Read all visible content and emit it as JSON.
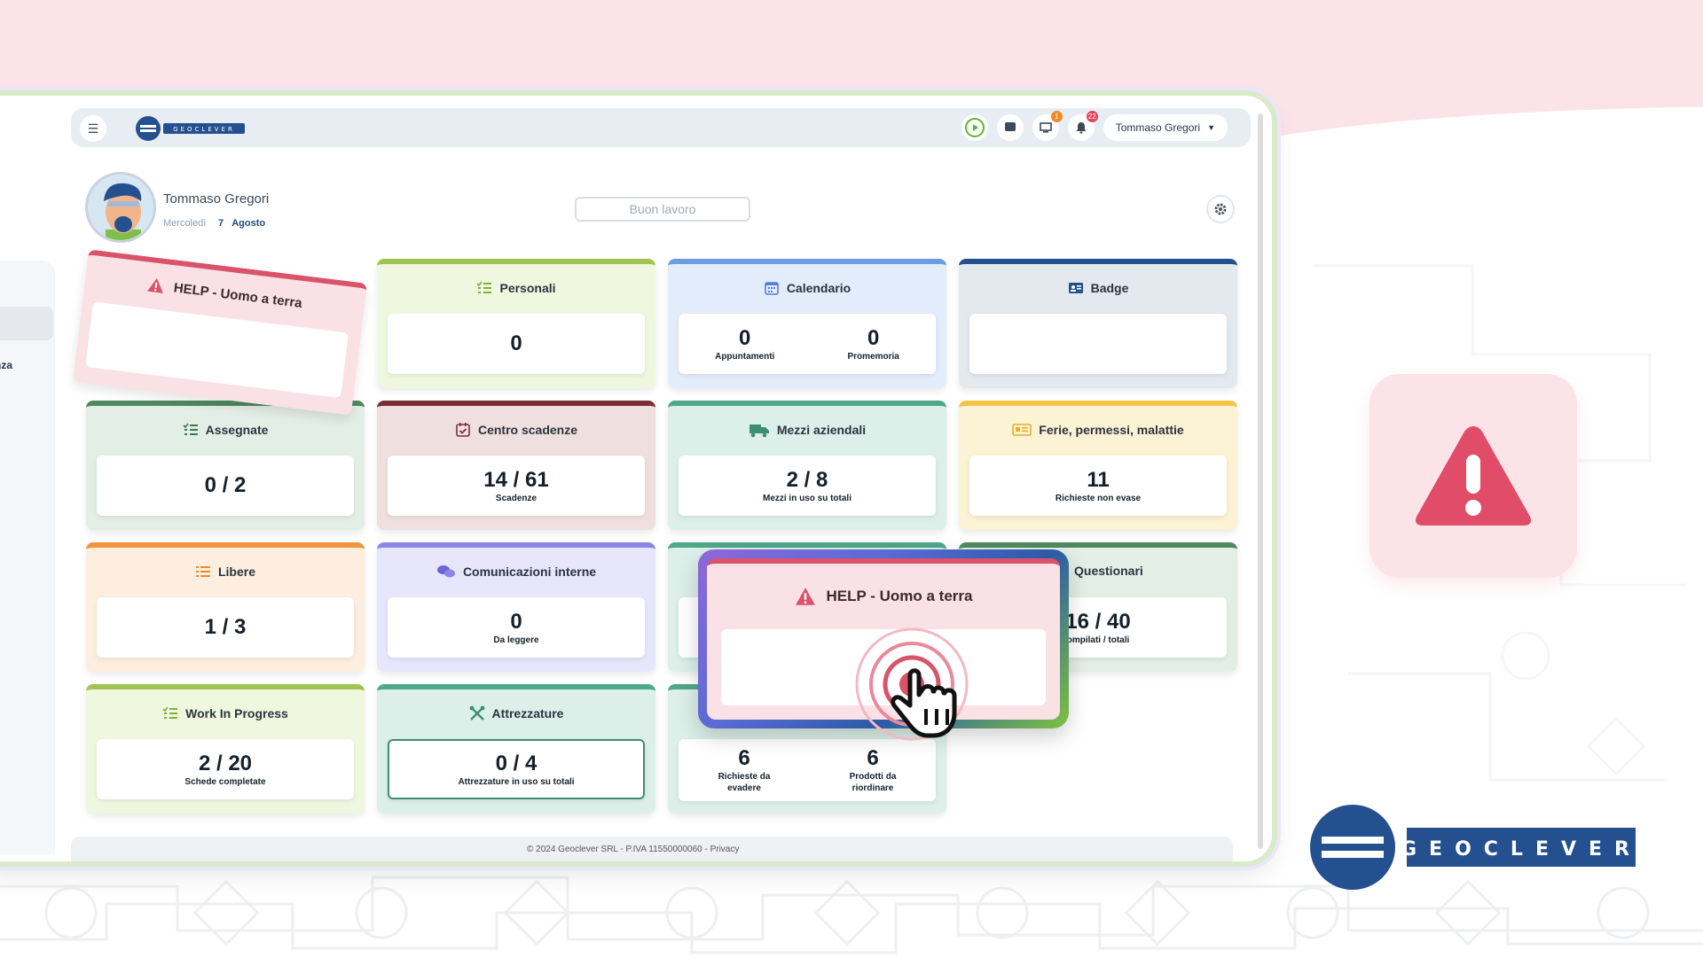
{
  "topbar": {
    "logo_text": "GEOCLEVER",
    "user_button": "Tommaso Gregori",
    "notifications": [
      {
        "icon": "play-icon",
        "count": ""
      },
      {
        "icon": "message-icon",
        "count": ""
      },
      {
        "icon": "monitor-icon",
        "count": "1"
      },
      {
        "icon": "bell-icon",
        "count": "22"
      }
    ]
  },
  "profile": {
    "name": "Tommaso Gregori",
    "day": "Mercoledì",
    "date_num": "7",
    "month": "Agosto",
    "motto": "Buon lavoro"
  },
  "sidebar": {
    "partial_label": "genza"
  },
  "footer": {
    "text": "© 2024 Geoclever SRL - P.IVA 11550000060 - Privacy"
  },
  "help_card": {
    "title": "HELP - Uomo a terra"
  },
  "widgets": {
    "personali": {
      "title": "Personali",
      "value": "0"
    },
    "calendario": {
      "title": "Calendario",
      "left_value": "0",
      "left_label": "Appuntamenti",
      "right_value": "0",
      "right_label": "Promemoria"
    },
    "badge": {
      "title": "Badge"
    },
    "assegnate": {
      "title": "Assegnate",
      "value": "0 / 2"
    },
    "centro_scadenze": {
      "title": "Centro scadenze",
      "value": "14 / 61",
      "label": "Scadenze"
    },
    "mezzi": {
      "title": "Mezzi aziendali",
      "value": "2 / 8",
      "label": "Mezzi in uso su totali"
    },
    "ferie": {
      "title": "Ferie, permessi, malattie",
      "value": "11",
      "label": "Richieste non evase"
    },
    "libere": {
      "title": "Libere",
      "value": "1 / 3"
    },
    "comunicazioni": {
      "title": "Comunicazioni interne",
      "value": "0",
      "label": "Da leggere"
    },
    "questionari": {
      "title": "Questionari",
      "value": "16 / 40",
      "label": "ompilati / totali"
    },
    "wip": {
      "title": "Work In Progress",
      "value": "2 / 20",
      "label": "Schede completate"
    },
    "attrezzature": {
      "title": "Attrezzature",
      "value": "0 / 4",
      "label": "Attrezzature in uso su totali"
    },
    "magazzino": {
      "left_value": "6",
      "left_label_1": "Richieste da",
      "left_label_2": "evadere",
      "right_value": "6",
      "right_label_1": "Prodotti da",
      "right_label_2": "riordinare"
    }
  },
  "brand": {
    "logo_text": "GEOCLEVER"
  },
  "colors": {
    "help_red": "#d9536a",
    "brand_blue": "#24508f"
  }
}
